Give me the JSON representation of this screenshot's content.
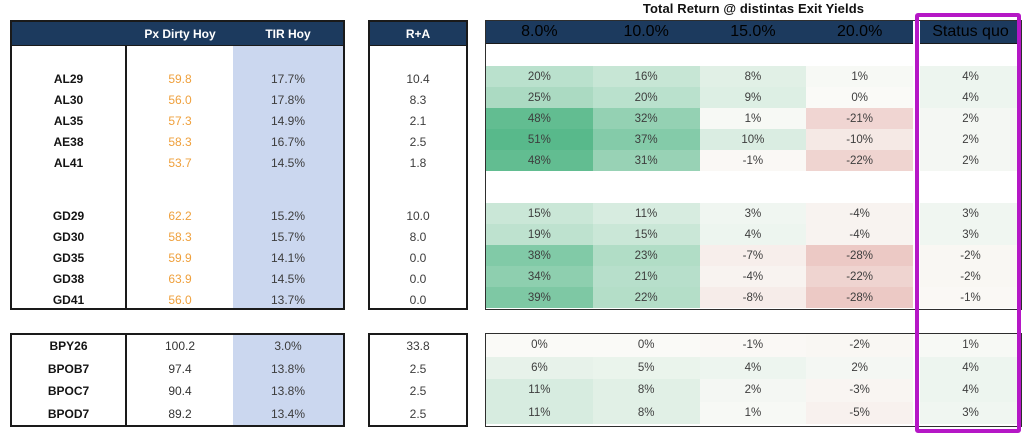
{
  "title": "Total Return @ distintas Exit Yields",
  "colors": {
    "header_navy": "#1c3a5e",
    "header_text": "#ffffff",
    "tir_column_fill": "#cbd7ef",
    "price_orange": "#efa03c",
    "highlight_magenta": "#b517c6",
    "ticker_text": "#141414",
    "value_text": "#3c3c3c"
  },
  "colormap": {
    "min": -28,
    "mid": 0,
    "max": 51,
    "min_color": "#ecc9c5",
    "mid_color": "#fafaf7",
    "max_color": "#58b98b"
  },
  "chart_data": {
    "type": "heatmap",
    "title": "Total Return @ distintas Exit Yields",
    "left_columns": [
      "",
      "Px Dirty Hoy",
      "TIR Hoy"
    ],
    "ra_column": "R+A",
    "exit_yield_columns": [
      "8.0%",
      "10.0%",
      "15.0%",
      "20.0%"
    ],
    "status_column": "Status quo",
    "sections": [
      {
        "px_style": "orange",
        "groups": [
          {
            "rows": [
              {
                "ticker": "AL29",
                "px": "59.8",
                "tir": "17.7%",
                "ra": "10.4",
                "returns": [
                  20,
                  16,
                  8,
                  1
                ],
                "status": 4
              },
              {
                "ticker": "AL30",
                "px": "56.0",
                "tir": "17.8%",
                "ra": "8.3",
                "returns": [
                  25,
                  20,
                  9,
                  0
                ],
                "status": 4
              },
              {
                "ticker": "AL35",
                "px": "57.3",
                "tir": "14.9%",
                "ra": "2.1",
                "returns": [
                  48,
                  32,
                  1,
                  -21
                ],
                "status": 2
              },
              {
                "ticker": "AE38",
                "px": "58.3",
                "tir": "16.7%",
                "ra": "2.5",
                "returns": [
                  51,
                  37,
                  10,
                  -10
                ],
                "status": 2
              },
              {
                "ticker": "AL41",
                "px": "53.7",
                "tir": "14.5%",
                "ra": "1.8",
                "returns": [
                  48,
                  31,
                  -1,
                  -22
                ],
                "status": 2
              }
            ]
          },
          {
            "rows": [
              {
                "ticker": "GD29",
                "px": "62.2",
                "tir": "15.2%",
                "ra": "10.0",
                "returns": [
                  15,
                  11,
                  3,
                  -4
                ],
                "status": 3
              },
              {
                "ticker": "GD30",
                "px": "58.3",
                "tir": "15.7%",
                "ra": "8.0",
                "returns": [
                  19,
                  15,
                  4,
                  -4
                ],
                "status": 3
              },
              {
                "ticker": "GD35",
                "px": "59.9",
                "tir": "14.1%",
                "ra": "0.0",
                "returns": [
                  38,
                  23,
                  -7,
                  -28
                ],
                "status": -2
              },
              {
                "ticker": "GD38",
                "px": "63.9",
                "tir": "14.5%",
                "ra": "0.0",
                "returns": [
                  34,
                  21,
                  -4,
                  -22
                ],
                "status": -2
              },
              {
                "ticker": "GD41",
                "px": "56.0",
                "tir": "13.7%",
                "ra": "0.0",
                "returns": [
                  39,
                  22,
                  -8,
                  -28
                ],
                "status": -1
              }
            ]
          }
        ]
      },
      {
        "px_style": "dark",
        "groups": [
          {
            "rows": [
              {
                "ticker": "BPY26",
                "px": "100.2",
                "tir": "3.0%",
                "ra": "33.8",
                "returns": [
                  0,
                  0,
                  -1,
                  -2
                ],
                "status": 1
              },
              {
                "ticker": "BPOB7",
                "px": "97.4",
                "tir": "13.8%",
                "ra": "2.5",
                "returns": [
                  6,
                  5,
                  4,
                  2
                ],
                "status": 4
              },
              {
                "ticker": "BPOC7",
                "px": "90.4",
                "tir": "13.8%",
                "ra": "2.5",
                "returns": [
                  11,
                  8,
                  2,
                  -3
                ],
                "status": 4
              },
              {
                "ticker": "BPOD7",
                "px": "89.2",
                "tir": "13.4%",
                "ra": "2.5",
                "returns": [
                  11,
                  8,
                  1,
                  -5
                ],
                "status": 3
              }
            ]
          }
        ]
      }
    ]
  }
}
